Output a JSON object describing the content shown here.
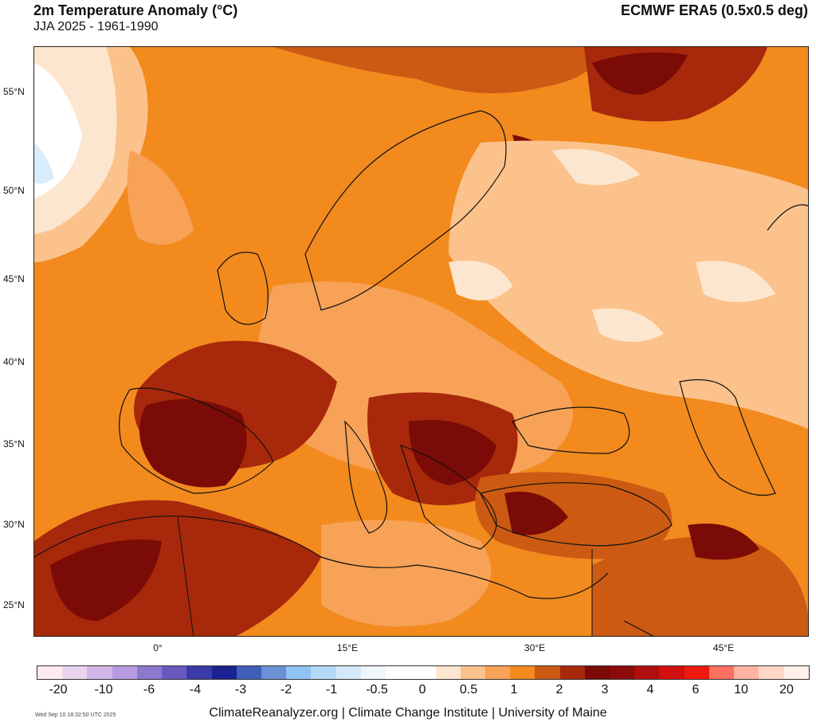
{
  "header": {
    "title": "2m Temperature Anomaly (°C)",
    "subtitle": "JJA 2025 - 1961-1990",
    "source": "ECMWF ERA5 (0.5x0.5 deg)"
  },
  "map": {
    "lat_labels": [
      "55°N",
      "50°N",
      "45°N",
      "40°N",
      "35°N",
      "30°N",
      "25°N"
    ],
    "lon_labels": [
      "0°",
      "15°E",
      "30°E",
      "45°E"
    ],
    "colors": {
      "ocean_base": "#f28a1e",
      "very_hot": "#7a0b06",
      "hot": "#a8280b",
      "warm": "#cc5a12",
      "mild": "#f7a257",
      "light": "#fbc28c",
      "pale": "#fde6cf",
      "neutral": "#ffffff",
      "cool": "#d9ecfb",
      "border": "#111111"
    }
  },
  "colorbar": {
    "labels": [
      "-20",
      "-10",
      "-6",
      "-4",
      "-3",
      "-2",
      "-1",
      "-0.5",
      "0",
      "0.5",
      "1",
      "2",
      "3",
      "4",
      "6",
      "10",
      "20"
    ],
    "swatches": [
      "#fde9ef",
      "#ead5ef",
      "#d3b6e8",
      "#b89be0",
      "#8e77cf",
      "#6a58c0",
      "#3a3aa8",
      "#1b2190",
      "#3f5fb8",
      "#6b90d6",
      "#8ec3f2",
      "#b5d8f7",
      "#d5e8f9",
      "#eef5fb",
      "#ffffff",
      "#ffffff",
      "#fde6cf",
      "#fbc28c",
      "#f7a257",
      "#f28a1e",
      "#cc5a12",
      "#a8280b",
      "#7a0b06",
      "#8c0a0a",
      "#b00e0e",
      "#d1100f",
      "#ee1a10",
      "#ff7060",
      "#ffb3a0",
      "#ffd8c8",
      "#fff0ea"
    ]
  },
  "footer": {
    "credit": "ClimateReanalyzer.org | Climate Change Institute | University of Maine",
    "timestamp": "Wed Sep 10 18:32:50 UTC 2025"
  }
}
